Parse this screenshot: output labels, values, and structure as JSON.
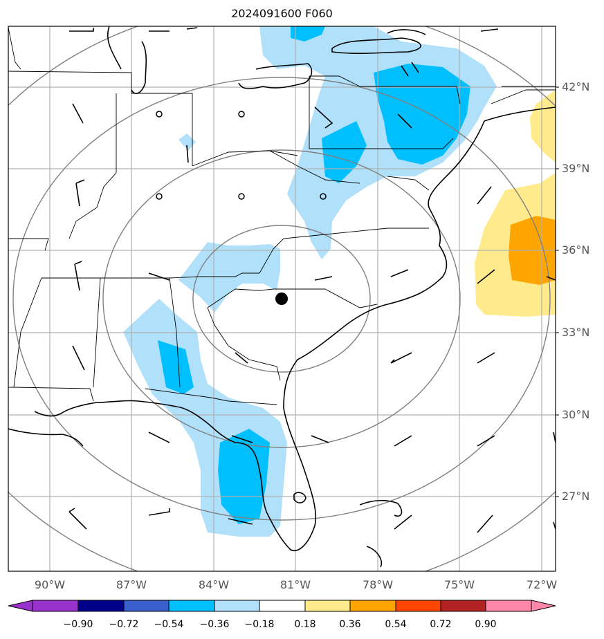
{
  "title": "2024091600 F060",
  "lat_labels": [
    "42°N",
    "39°N",
    "36°N",
    "33°N",
    "30°N",
    "27°N"
  ],
  "lon_labels": [
    "90°W",
    "87°W",
    "84°W",
    "81°W",
    "78°W",
    "75°W",
    "72°W"
  ],
  "colorbar": {
    "ticks": [
      "−0.90",
      "−0.72",
      "−0.54",
      "−0.36",
      "−0.18",
      "0.18",
      "0.36",
      "0.54",
      "0.72",
      "0.90"
    ],
    "colors": [
      "#9932cc",
      "#00008b",
      "#3a5fcd",
      "#00bfff",
      "#b0e0fa",
      "#ffffff",
      "#ffeb8c",
      "#ffa500",
      "#ff4500",
      "#b22222",
      "#ff88aa"
    ]
  },
  "colors": {
    "light_blue": "#b0e0fa",
    "deep_sky_blue": "#00bfff",
    "light_yellow": "#ffeb8c",
    "orange": "#ffa500",
    "range_ring": "#808080",
    "grid": "#b0b0b0"
  },
  "marker": {
    "name": "center-point"
  }
}
